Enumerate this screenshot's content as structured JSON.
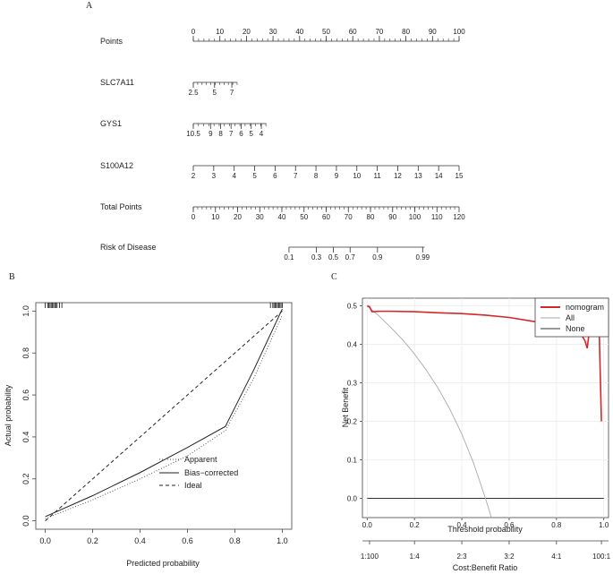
{
  "panel_labels": [
    "A",
    "B",
    "C"
  ],
  "chart_data": [
    {
      "type": "nomogram",
      "panel": "A",
      "rows": [
        {
          "label": "Points",
          "range": [
            0,
            100
          ],
          "ticks": [
            {
              "v": 0,
              "t": "0"
            },
            {
              "v": 10,
              "t": "10"
            },
            {
              "v": 20,
              "t": "20"
            },
            {
              "v": 30,
              "t": "30"
            },
            {
              "v": 40,
              "t": "40"
            },
            {
              "v": 50,
              "t": "50"
            },
            {
              "v": 60,
              "t": "60"
            },
            {
              "v": 70,
              "t": "70"
            },
            {
              "v": 80,
              "t": "80"
            },
            {
              "v": 90,
              "t": "90"
            },
            {
              "v": 100,
              "t": "100"
            }
          ],
          "labels_above": true,
          "minor_step": 2
        },
        {
          "label": "SLC7A11",
          "range": [
            0,
            16.5
          ],
          "ticks": [
            {
              "v": 0,
              "t": "2.5"
            },
            {
              "v": 8,
              "t": "5"
            },
            {
              "v": 14.5,
              "t": "7"
            }
          ],
          "minor_step": 1.65
        },
        {
          "label": "GYS1",
          "range": [
            0,
            27.5
          ],
          "ticks": [
            {
              "v": 0,
              "t": "10.5"
            },
            {
              "v": 6.5,
              "t": "9"
            },
            {
              "v": 10.3,
              "t": "8"
            },
            {
              "v": 14.2,
              "t": "7"
            },
            {
              "v": 18,
              "t": "6"
            },
            {
              "v": 21.8,
              "t": "5"
            },
            {
              "v": 25.6,
              "t": "4"
            }
          ],
          "minor_step": 1.95
        },
        {
          "label": "S100A12",
          "range": [
            0,
            100
          ],
          "ticks": [
            {
              "v": 0,
              "t": "2"
            },
            {
              "v": 7.69,
              "t": "3"
            },
            {
              "v": 15.38,
              "t": "4"
            },
            {
              "v": 23.08,
              "t": "5"
            },
            {
              "v": 30.77,
              "t": "6"
            },
            {
              "v": 38.46,
              "t": "7"
            },
            {
              "v": 46.15,
              "t": "8"
            },
            {
              "v": 53.85,
              "t": "9"
            },
            {
              "v": 61.54,
              "t": "10"
            },
            {
              "v": 69.23,
              "t": "11"
            },
            {
              "v": 76.92,
              "t": "12"
            },
            {
              "v": 84.62,
              "t": "13"
            },
            {
              "v": 92.31,
              "t": "14"
            },
            {
              "v": 100,
              "t": "15"
            }
          ]
        },
        {
          "label": "Total Points",
          "range": [
            0,
            100
          ],
          "ticks": [
            {
              "v": 0,
              "t": "0"
            },
            {
              "v": 8.33,
              "t": "10"
            },
            {
              "v": 16.67,
              "t": "20"
            },
            {
              "v": 25,
              "t": "30"
            },
            {
              "v": 33.33,
              "t": "40"
            },
            {
              "v": 41.67,
              "t": "50"
            },
            {
              "v": 50,
              "t": "60"
            },
            {
              "v": 58.33,
              "t": "70"
            },
            {
              "v": 66.67,
              "t": "80"
            },
            {
              "v": 75,
              "t": "90"
            },
            {
              "v": 83.33,
              "t": "100"
            },
            {
              "v": 91.67,
              "t": "110"
            },
            {
              "v": 100,
              "t": "120"
            }
          ],
          "minor_step": 1.667
        },
        {
          "label": "Risk of Disease",
          "range": [
            36,
            87
          ],
          "ticks": [
            {
              "v": 36,
              "t": "0.1"
            },
            {
              "v": 46.3,
              "t": "0.3"
            },
            {
              "v": 52.7,
              "t": "0.5"
            },
            {
              "v": 59,
              "t": "0.7"
            },
            {
              "v": 69.3,
              "t": "0.9"
            },
            {
              "v": 86.3,
              "t": "0.99"
            }
          ]
        }
      ]
    },
    {
      "type": "line",
      "panel": "B",
      "xlabel": "Predicted probability",
      "ylabel": "Actual probability",
      "xlim": [
        -0.04,
        1.04
      ],
      "ylim": [
        -0.04,
        1.04
      ],
      "xticks": [
        "0.0",
        "0.2",
        "0.4",
        "0.6",
        "0.8",
        "1.0"
      ],
      "yticks": [
        "0.0",
        "0.2",
        "0.4",
        "0.6",
        "0.8",
        "1.0"
      ],
      "legend": [
        "Apparent",
        "Bias−corrected",
        "Ideal"
      ],
      "legend_position": "bottom-right",
      "series": [
        {
          "name": "Apparent",
          "style": "dotted",
          "x": [
            0.0,
            0.02,
            0.2,
            0.4,
            0.6,
            0.76,
            0.88,
            1.0
          ],
          "y": [
            0.01,
            0.02,
            0.1,
            0.2,
            0.31,
            0.43,
            0.68,
            0.98
          ]
        },
        {
          "name": "Bias−corrected",
          "style": "solid",
          "x": [
            0.0,
            0.02,
            0.2,
            0.4,
            0.6,
            0.76,
            0.88,
            1.0
          ],
          "y": [
            0.02,
            0.03,
            0.12,
            0.23,
            0.35,
            0.45,
            0.72,
            1.01
          ]
        },
        {
          "name": "Ideal",
          "style": "dashed",
          "x": [
            0.0,
            1.0
          ],
          "y": [
            0.0,
            1.0
          ]
        }
      ],
      "rug_x": [
        0.0,
        0.01,
        0.015,
        0.02,
        0.025,
        0.03,
        0.035,
        0.04,
        0.045,
        0.05,
        0.06,
        0.07,
        0.95,
        0.96,
        0.965,
        0.97,
        0.975,
        0.98,
        0.985,
        0.99,
        0.995,
        1.0
      ]
    },
    {
      "type": "line",
      "panel": "C",
      "xlabel": "Threshold probability",
      "ylabel": "Net Benefit",
      "xlim": [
        -0.02,
        1.02
      ],
      "ylim": [
        -0.05,
        0.52
      ],
      "xticks": [
        "0.0",
        "0.2",
        "0.4",
        "0.6",
        "0.8",
        "1.0"
      ],
      "yticks": [
        "0.0",
        "0.1",
        "0.2",
        "0.3",
        "0.4",
        "0.5"
      ],
      "secondary_x_label": "Cost:Benefit Ratio",
      "secondary_x_ticks": [
        {
          "x": 0.01,
          "t": "1:100"
        },
        {
          "x": 0.2,
          "t": "1:4"
        },
        {
          "x": 0.4,
          "t": "2:3"
        },
        {
          "x": 0.6,
          "t": "3:2"
        },
        {
          "x": 0.8,
          "t": "4:1"
        },
        {
          "x": 0.99,
          "t": "100:1"
        }
      ],
      "legend": [
        "nomogram",
        "All",
        "None"
      ],
      "legend_position": "top-right",
      "series": [
        {
          "name": "nomogram",
          "color": "#d62728",
          "x": [
            0.0,
            0.01,
            0.02,
            0.03,
            0.05,
            0.1,
            0.2,
            0.3,
            0.4,
            0.5,
            0.6,
            0.7,
            0.8,
            0.86,
            0.9,
            0.92,
            0.93,
            0.94,
            0.95,
            0.96,
            0.97,
            0.98,
            0.99
          ],
          "y": [
            0.5,
            0.498,
            0.485,
            0.485,
            0.486,
            0.486,
            0.485,
            0.482,
            0.48,
            0.476,
            0.47,
            0.46,
            0.45,
            0.44,
            0.43,
            0.41,
            0.39,
            0.44,
            0.45,
            0.45,
            0.45,
            0.45,
            0.2
          ]
        },
        {
          "name": "All",
          "color": "#aaaaaa",
          "x": [
            0.0,
            0.05,
            0.1,
            0.15,
            0.2,
            0.25,
            0.3,
            0.35,
            0.4,
            0.45,
            0.5,
            0.525
          ],
          "y": [
            0.5,
            0.474,
            0.444,
            0.412,
            0.375,
            0.333,
            0.286,
            0.231,
            0.167,
            0.091,
            0.0,
            -0.053
          ]
        },
        {
          "name": "None",
          "color": "#333333",
          "x": [
            0.0,
            1.0
          ],
          "y": [
            0.0,
            0.0
          ]
        }
      ]
    }
  ]
}
